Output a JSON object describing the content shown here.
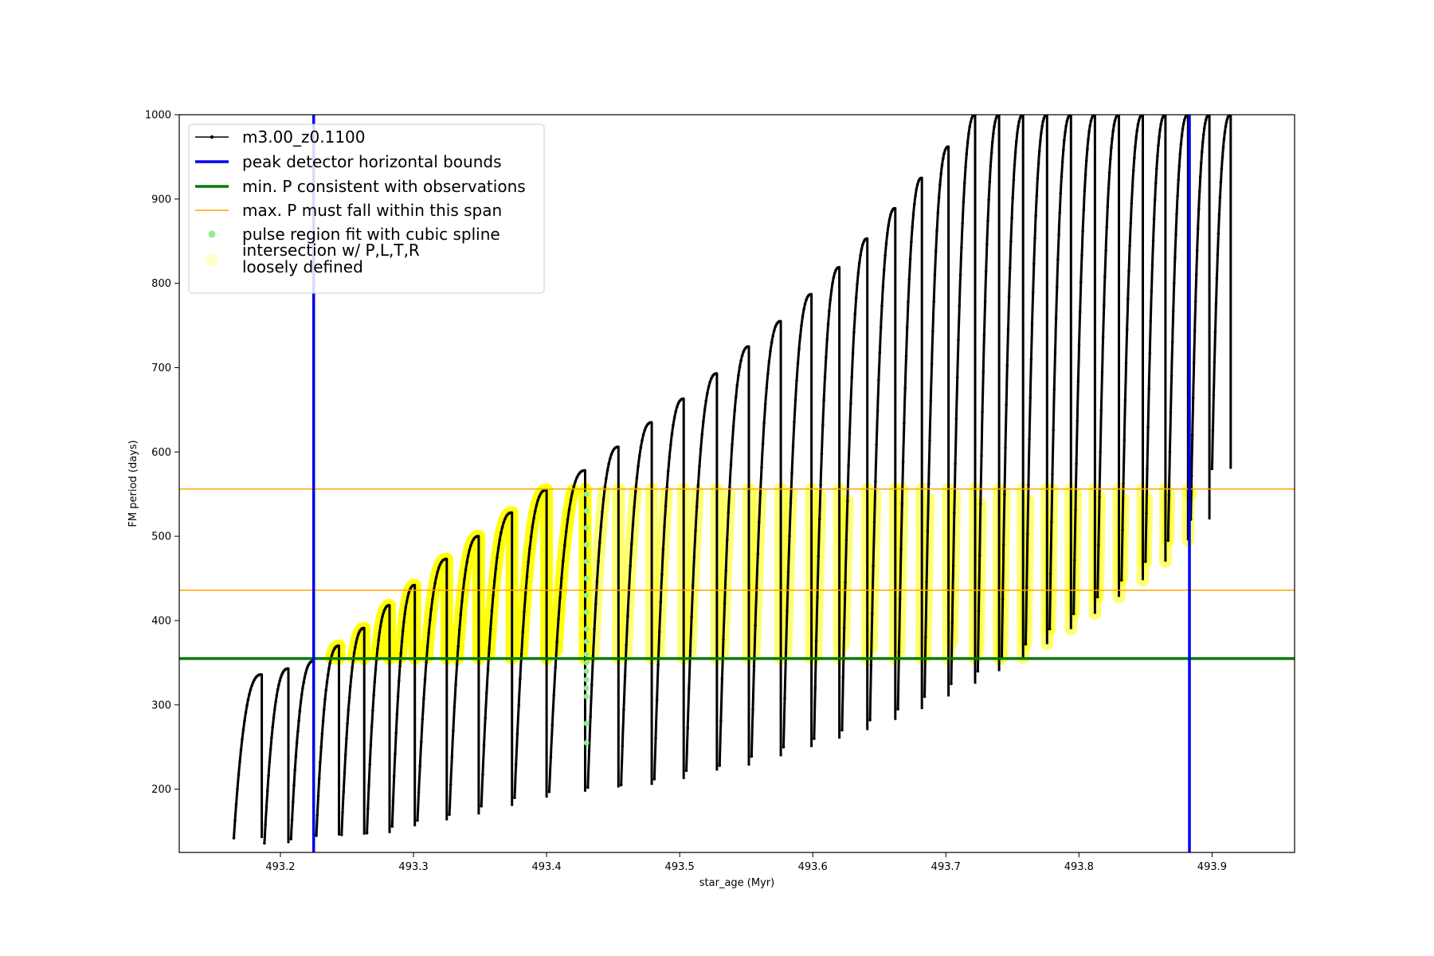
{
  "chart_data": {
    "type": "line",
    "title": "",
    "xlabel": "star_age (Myr)",
    "ylabel": "FM period (days)",
    "xlim": [
      493.124,
      493.962
    ],
    "ylim": [
      125,
      1000
    ],
    "xticks": [
      493.2,
      493.3,
      493.4,
      493.5,
      493.6,
      493.7,
      493.8,
      493.9
    ],
    "xtick_labels": [
      "493.2",
      "493.3",
      "493.4",
      "493.5",
      "493.6",
      "493.7",
      "493.8",
      "493.9"
    ],
    "yticks": [
      200,
      300,
      400,
      500,
      600,
      700,
      800,
      900,
      1000
    ],
    "ytick_labels": [
      "200",
      "300",
      "400",
      "500",
      "600",
      "700",
      "800",
      "900",
      "1000"
    ],
    "grid": false,
    "legend_position": "top-left",
    "legend": [
      {
        "label": "m3.00_z0.1100",
        "kind": "line-marker",
        "color": "#000000"
      },
      {
        "label": "peak detector horizontal bounds",
        "kind": "line",
        "color": "#0000ee"
      },
      {
        "label": "min. P consistent with observations",
        "kind": "line",
        "color": "#007a00"
      },
      {
        "label": "max. P must fall within this span",
        "kind": "line",
        "color": "#ffa500"
      },
      {
        "label": "pulse region fit with cubic spline",
        "kind": "dot",
        "color": "#90ee90"
      },
      {
        "label": "intersection w/ P,L,T,R",
        "label_line2": "loosely defined",
        "kind": "bigdot",
        "color": "#ffff00"
      }
    ],
    "vertical_lines": [
      {
        "x": 493.225,
        "color": "#0000ee",
        "role": "peak detector horizontal bounds"
      },
      {
        "x": 493.883,
        "color": "#0000ee",
        "role": "peak detector horizontal bounds"
      }
    ],
    "horizontal_lines": [
      {
        "y": 355,
        "color": "#007a00",
        "role": "min. P consistent with observations"
      },
      {
        "y": 436,
        "color": "#ffa500",
        "role": "max. P lower bound"
      },
      {
        "y": 556,
        "color": "#ffa500",
        "role": "max. P upper bound"
      }
    ],
    "pulses": [
      {
        "x_start": 493.165,
        "x_end": 493.186,
        "y_min": 142,
        "y_peak": 336
      },
      {
        "x_start": 493.188,
        "x_end": 493.206,
        "y_min": 136,
        "y_peak": 343
      },
      {
        "x_start": 493.208,
        "x_end": 493.225,
        "y_min": 141,
        "y_peak": 352
      },
      {
        "x_start": 493.227,
        "x_end": 493.244,
        "y_min": 145,
        "y_peak": 370
      },
      {
        "x_start": 493.246,
        "x_end": 493.263,
        "y_min": 146,
        "y_peak": 391
      },
      {
        "x_start": 493.265,
        "x_end": 493.282,
        "y_min": 148,
        "y_peak": 418
      },
      {
        "x_start": 493.284,
        "x_end": 493.301,
        "y_min": 156,
        "y_peak": 442
      },
      {
        "x_start": 493.303,
        "x_end": 493.325,
        "y_min": 163,
        "y_peak": 473
      },
      {
        "x_start": 493.327,
        "x_end": 493.349,
        "y_min": 170,
        "y_peak": 500
      },
      {
        "x_start": 493.351,
        "x_end": 493.374,
        "y_min": 180,
        "y_peak": 528
      },
      {
        "x_start": 493.376,
        "x_end": 493.4,
        "y_min": 190,
        "y_peak": 555
      },
      {
        "x_start": 493.402,
        "x_end": 493.429,
        "y_min": 197,
        "y_peak": 578
      },
      {
        "x_start": 493.431,
        "x_end": 493.454,
        "y_min": 202,
        "y_peak": 606
      },
      {
        "x_start": 493.456,
        "x_end": 493.479,
        "y_min": 205,
        "y_peak": 635
      },
      {
        "x_start": 493.481,
        "x_end": 493.503,
        "y_min": 212,
        "y_peak": 663
      },
      {
        "x_start": 493.505,
        "x_end": 493.528,
        "y_min": 222,
        "y_peak": 693
      },
      {
        "x_start": 493.53,
        "x_end": 493.552,
        "y_min": 228,
        "y_peak": 725
      },
      {
        "x_start": 493.554,
        "x_end": 493.576,
        "y_min": 239,
        "y_peak": 755
      },
      {
        "x_start": 493.578,
        "x_end": 493.599,
        "y_min": 250,
        "y_peak": 787
      },
      {
        "x_start": 493.601,
        "x_end": 493.62,
        "y_min": 260,
        "y_peak": 819
      },
      {
        "x_start": 493.622,
        "x_end": 493.641,
        "y_min": 270,
        "y_peak": 853
      },
      {
        "x_start": 493.643,
        "x_end": 493.662,
        "y_min": 282,
        "y_peak": 889
      },
      {
        "x_start": 493.664,
        "x_end": 493.682,
        "y_min": 295,
        "y_peak": 925
      },
      {
        "x_start": 493.684,
        "x_end": 493.702,
        "y_min": 310,
        "y_peak": 962
      },
      {
        "x_start": 493.704,
        "x_end": 493.722,
        "y_min": 325,
        "y_peak": 1000
      },
      {
        "x_start": 493.724,
        "x_end": 493.74,
        "y_min": 340,
        "y_peak": 1000
      },
      {
        "x_start": 493.742,
        "x_end": 493.758,
        "y_min": 356,
        "y_peak": 1000
      },
      {
        "x_start": 493.76,
        "x_end": 493.776,
        "y_min": 372,
        "y_peak": 1000
      },
      {
        "x_start": 493.778,
        "x_end": 493.794,
        "y_min": 390,
        "y_peak": 1000
      },
      {
        "x_start": 493.796,
        "x_end": 493.812,
        "y_min": 408,
        "y_peak": 1000
      },
      {
        "x_start": 493.814,
        "x_end": 493.83,
        "y_min": 428,
        "y_peak": 1000
      },
      {
        "x_start": 493.832,
        "x_end": 493.848,
        "y_min": 448,
        "y_peak": 1000
      },
      {
        "x_start": 493.85,
        "x_end": 493.865,
        "y_min": 470,
        "y_peak": 1000
      },
      {
        "x_start": 493.867,
        "x_end": 493.882,
        "y_min": 495,
        "y_peak": 1000
      },
      {
        "x_start": 493.884,
        "x_end": 493.898,
        "y_min": 520,
        "y_peak": 1000
      },
      {
        "x_start": 493.9,
        "x_end": 493.914,
        "y_min": 580,
        "y_peak": 1000
      }
    ],
    "spline_points": {
      "x": 493.43,
      "y": [
        255,
        278,
        310,
        320,
        330,
        340,
        350,
        360,
        375,
        390,
        410,
        430,
        450,
        470,
        490,
        510,
        530,
        550
      ]
    }
  }
}
